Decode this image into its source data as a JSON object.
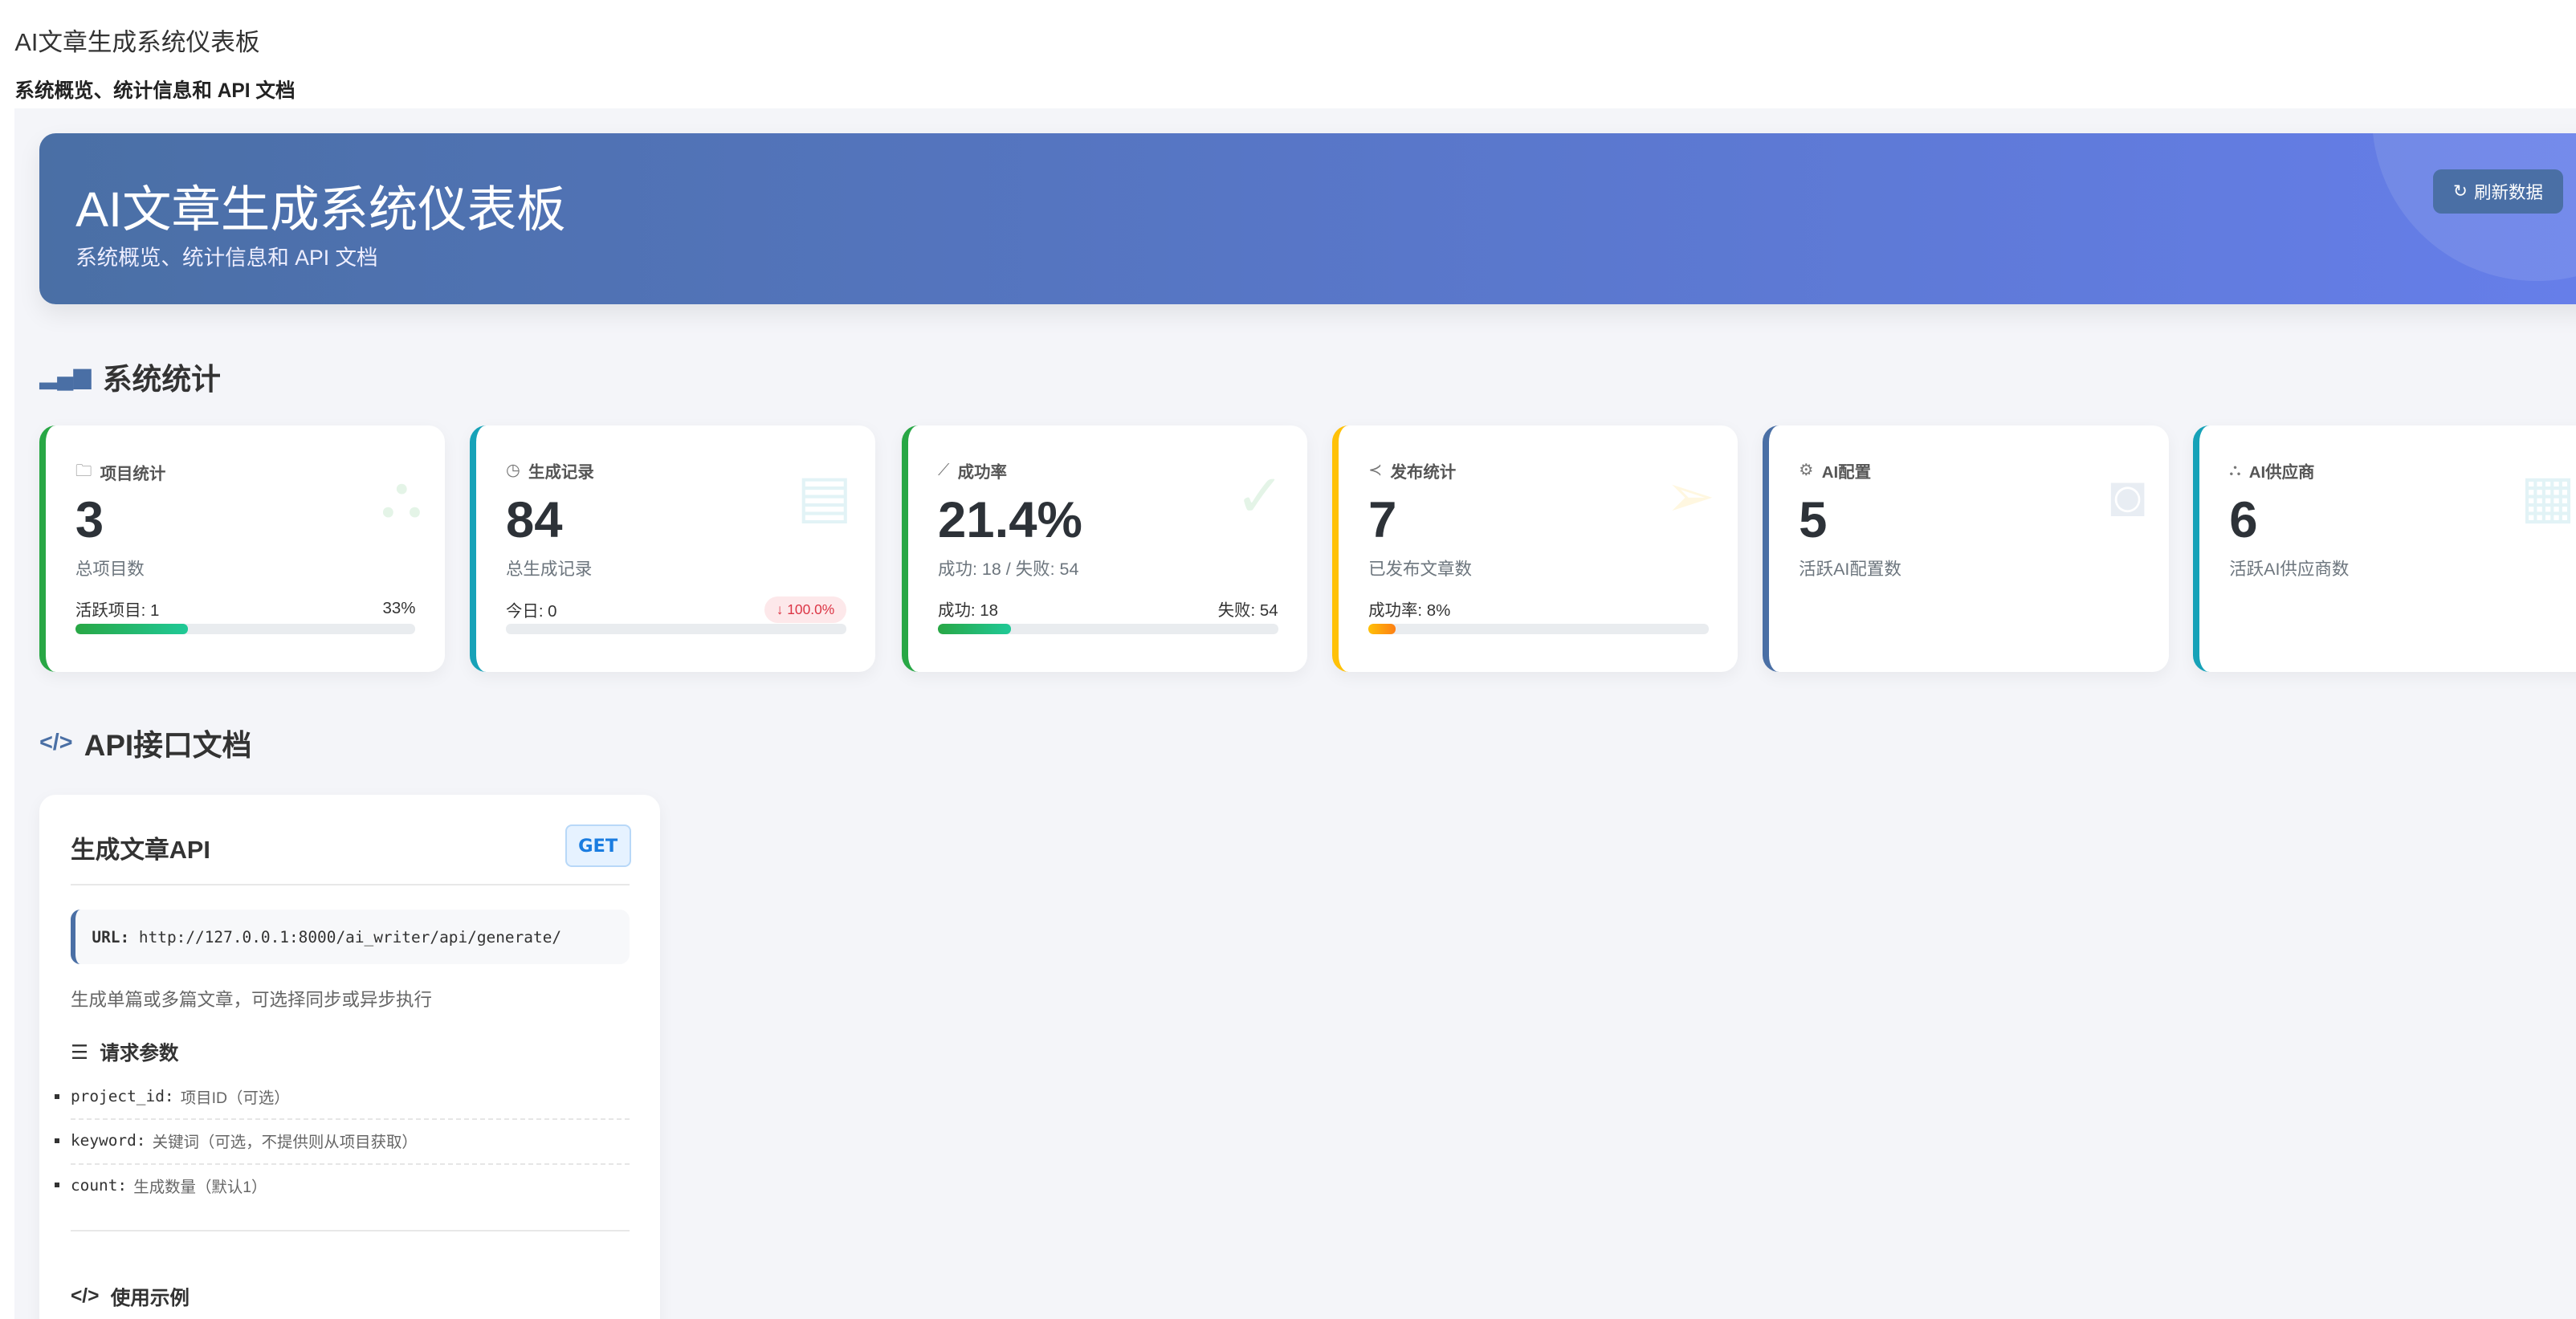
{
  "page": {
    "title": "AI文章生成系统仪表板",
    "subtitle": "系统概览、统计信息和 API 文档"
  },
  "banner": {
    "title": "AI文章生成系统仪表板",
    "subtitle": "系统概览、统计信息和 API 文档",
    "refresh_label": "刷新数据",
    "gradient": [
      "#4a6fa5",
      "#667eea"
    ]
  },
  "stats": {
    "title": "系统统计",
    "cards": [
      {
        "title": "项目统计",
        "icon": "folder-icon",
        "value": "3",
        "label": "总项目数",
        "row_left": "活跃项目: 1",
        "row_right": "33%",
        "progress": 33,
        "color": "#28a745"
      },
      {
        "title": "生成记录",
        "icon": "clock-icon",
        "value": "84",
        "label": "总生成记录",
        "row_left": "今日: 0",
        "badge": "↓ 100.0%",
        "progress": 0,
        "color": "#17a2b8"
      },
      {
        "title": "成功率",
        "icon": "chart-line-icon",
        "value": "21.4%",
        "label": "成功: 18 / 失败: 54",
        "row_left": "成功: 18",
        "row_right": "失败: 54",
        "progress": 21.4,
        "color": "#28a745"
      },
      {
        "title": "发布统计",
        "icon": "share-icon",
        "value": "7",
        "label": "已发布文章数",
        "row_left": "成功率: 8%",
        "progress": 8,
        "color": "#ffc107"
      },
      {
        "title": "AI配置",
        "icon": "gear-icon",
        "value": "5",
        "label": "活跃AI配置数",
        "color": "#4a6fa5"
      },
      {
        "title": "AI供应商",
        "icon": "diagram-icon",
        "value": "6",
        "label": "活跃AI供应商数",
        "color": "#17a2b8"
      }
    ]
  },
  "api_docs": {
    "title": "API接口文档",
    "card": {
      "title": "生成文章API",
      "method": "GET",
      "url_label": "URL:",
      "url": "http://127.0.0.1:8000/ai_writer/api/generate/",
      "description": "生成单篇或多篇文章，可选择同步或异步执行",
      "params_title": "请求参数",
      "params": [
        {
          "name": "project_id:",
          "desc": "项目ID（可选）"
        },
        {
          "name": "keyword:",
          "desc": "关键词（可选，不提供则从项目获取）"
        },
        {
          "name": "count:",
          "desc": "生成数量（默认1）"
        }
      ],
      "example_title": "使用示例"
    }
  }
}
